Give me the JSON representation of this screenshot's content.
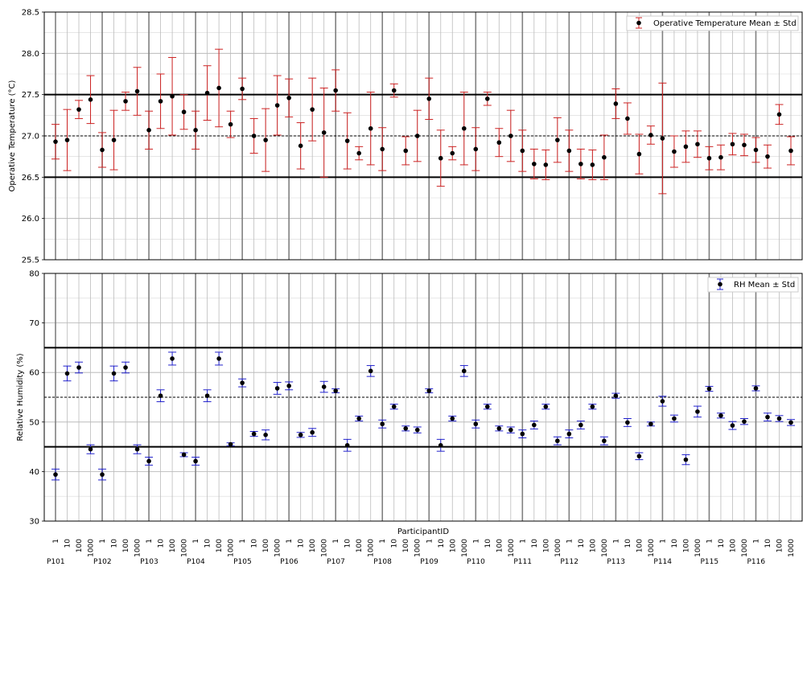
{
  "chart_data": [
    {
      "type": "scatter",
      "ylabel": "Operative Temperature (°C)",
      "ylim": [
        25.5,
        28.5
      ],
      "yticks": [
        "25.5",
        "26.0",
        "26.5",
        "27.0",
        "27.5",
        "28.0",
        "28.5"
      ],
      "legend": {
        "label": "Operative Temperature Mean ± Std",
        "placement": "top-right"
      },
      "reference_lines": [
        {
          "y": 27.5,
          "style": "solid"
        },
        {
          "y": 26.5,
          "style": "solid"
        },
        {
          "y": 27.0,
          "style": "dashed"
        }
      ],
      "colors": {
        "marker": "#000000",
        "errorbar": "#cc2222"
      },
      "series": [
        {
          "mean": [
            26.93,
            26.95,
            27.32,
            27.44,
            26.83,
            26.95,
            27.42,
            27.54,
            27.07,
            27.42,
            27.48,
            27.29,
            27.07,
            27.52,
            27.58,
            27.14,
            27.57,
            27.0,
            26.95,
            27.37,
            27.46,
            26.88,
            27.32,
            27.04,
            27.55,
            26.94,
            26.79,
            27.09,
            26.84,
            27.55,
            26.82,
            27.0,
            27.45,
            26.73,
            26.79,
            27.09,
            26.84,
            27.45,
            26.92,
            27.0,
            26.82,
            26.66,
            26.65,
            26.95,
            26.82,
            26.66,
            26.65,
            26.74,
            27.39,
            27.21,
            26.78,
            27.01,
            26.97,
            26.81,
            26.87,
            26.9,
            26.73,
            26.74,
            26.9,
            26.89,
            26.83,
            26.75,
            27.26,
            26.82
          ],
          "std": [
            0.21,
            0.37,
            0.11,
            0.29,
            0.21,
            0.36,
            0.11,
            0.29,
            0.23,
            0.33,
            0.47,
            0.21,
            0.23,
            0.33,
            0.47,
            0.16,
            0.13,
            0.21,
            0.38,
            0.36,
            0.23,
            0.28,
            0.38,
            0.54,
            0.25,
            0.34,
            0.08,
            0.44,
            0.26,
            0.08,
            0.17,
            0.31,
            0.25,
            0.34,
            0.08,
            0.44,
            0.26,
            0.08,
            0.17,
            0.31,
            0.25,
            0.18,
            0.18,
            0.27,
            0.25,
            0.18,
            0.18,
            0.27,
            0.18,
            0.19,
            0.24,
            0.11,
            0.67,
            0.19,
            0.19,
            0.16,
            0.14,
            0.15,
            0.13,
            0.13,
            0.15,
            0.14,
            0.12,
            0.17
          ]
        }
      ]
    },
    {
      "type": "scatter",
      "xlabel": "ParticipantID",
      "ylabel": "Relative Humidity (%)",
      "ylim": [
        30,
        80
      ],
      "yticks": [
        "30",
        "40",
        "50",
        "60",
        "70",
        "80"
      ],
      "legend": {
        "label": "RH Mean ± Std",
        "placement": "top-right"
      },
      "reference_lines": [
        {
          "y": 65,
          "style": "solid"
        },
        {
          "y": 45,
          "style": "solid"
        },
        {
          "y": 55,
          "style": "dashed"
        }
      ],
      "colors": {
        "marker": "#000000",
        "errorbar": "#2222cc"
      },
      "x_sub_labels": [
        "1",
        "10",
        "100",
        "1000"
      ],
      "x_group_labels": [
        "P101",
        "P102",
        "P103",
        "P104",
        "P105",
        "P106",
        "P107",
        "P108",
        "P109",
        "P110",
        "P111",
        "P112",
        "P113",
        "P114",
        "P115",
        "P116"
      ],
      "series": [
        {
          "mean": [
            39.4,
            59.8,
            61.0,
            44.5,
            39.4,
            59.8,
            61.0,
            44.5,
            42.1,
            55.3,
            62.8,
            43.4,
            42.1,
            55.3,
            62.8,
            45.5,
            57.9,
            47.6,
            47.4,
            56.8,
            57.3,
            47.4,
            47.9,
            57.1,
            56.3,
            45.3,
            50.7,
            60.3,
            49.6,
            53.1,
            48.7,
            48.4,
            56.3,
            45.3,
            50.7,
            60.3,
            49.6,
            53.1,
            48.7,
            48.4,
            47.6,
            49.4,
            53.1,
            46.2,
            47.6,
            49.4,
            53.1,
            46.2,
            55.3,
            49.9,
            43.1,
            49.6,
            54.2,
            50.7,
            42.4,
            52.1,
            56.7,
            51.3,
            49.3,
            50.1,
            56.8,
            51.0,
            50.7,
            49.9
          ],
          "std": [
            1.1,
            1.5,
            1.1,
            0.9,
            1.1,
            1.5,
            1.1,
            0.9,
            0.8,
            1.2,
            1.3,
            0.4,
            0.8,
            1.2,
            1.3,
            0.3,
            0.8,
            0.5,
            1.0,
            1.2,
            0.8,
            0.5,
            0.8,
            1.1,
            0.4,
            1.2,
            0.5,
            1.1,
            0.8,
            0.5,
            0.5,
            0.6,
            0.4,
            1.2,
            0.5,
            1.1,
            0.8,
            0.5,
            0.5,
            0.6,
            0.8,
            0.8,
            0.5,
            0.8,
            0.8,
            0.8,
            0.5,
            0.8,
            0.5,
            0.8,
            0.7,
            0.4,
            1.0,
            0.7,
            1.0,
            1.1,
            0.5,
            0.5,
            0.8,
            0.6,
            0.5,
            0.8,
            0.6,
            0.6
          ]
        }
      ]
    }
  ]
}
